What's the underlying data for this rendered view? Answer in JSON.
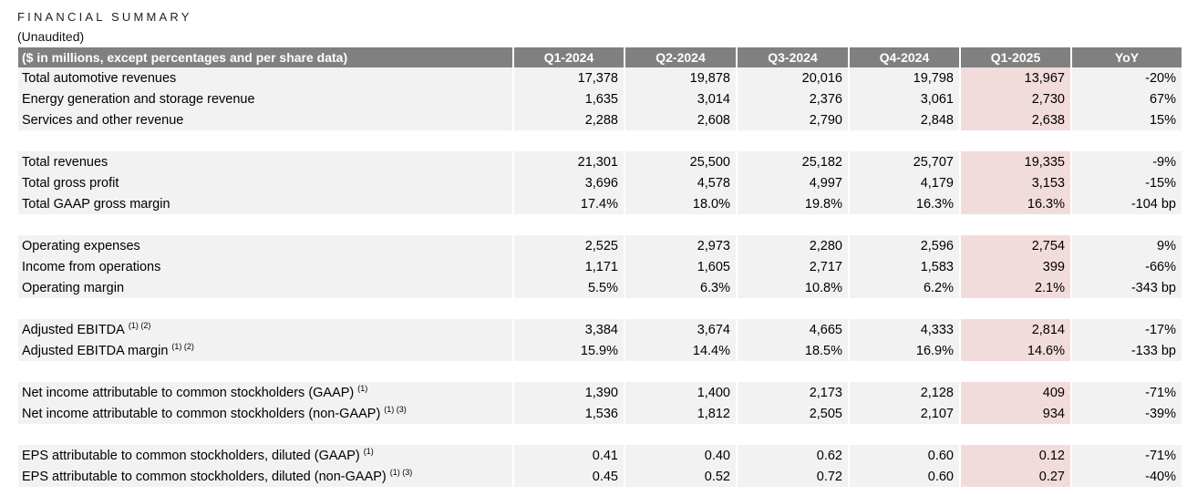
{
  "title": "FINANCIAL SUMMARY",
  "subtitle": "(Unaudited)",
  "header": [
    "($ in millions, except percentages and per share data)",
    "Q1-2024",
    "Q2-2024",
    "Q3-2024",
    "Q4-2024",
    "Q1-2025",
    "YoY"
  ],
  "groups": [
    [
      {
        "label": "Total automotive revenues",
        "sup": "",
        "values": [
          "17,378",
          "19,878",
          "20,016",
          "19,798",
          "13,967",
          "-20%"
        ]
      },
      {
        "label": "Energy generation and storage revenue",
        "sup": "",
        "values": [
          "1,635",
          "3,014",
          "2,376",
          "3,061",
          "2,730",
          "67%"
        ]
      },
      {
        "label": "Services and other revenue",
        "sup": "",
        "values": [
          "2,288",
          "2,608",
          "2,790",
          "2,848",
          "2,638",
          "15%"
        ]
      }
    ],
    [
      {
        "label": "Total revenues",
        "sup": "",
        "values": [
          "21,301",
          "25,500",
          "25,182",
          "25,707",
          "19,335",
          "-9%"
        ]
      },
      {
        "label": "Total gross profit",
        "sup": "",
        "values": [
          "3,696",
          "4,578",
          "4,997",
          "4,179",
          "3,153",
          "-15%"
        ]
      },
      {
        "label": "Total GAAP gross margin",
        "sup": "",
        "values": [
          "17.4%",
          "18.0%",
          "19.8%",
          "16.3%",
          "16.3%",
          "-104 bp"
        ]
      }
    ],
    [
      {
        "label": "Operating expenses",
        "sup": "",
        "values": [
          "2,525",
          "2,973",
          "2,280",
          "2,596",
          "2,754",
          "9%"
        ]
      },
      {
        "label": "Income from operations",
        "sup": "",
        "values": [
          "1,171",
          "1,605",
          "2,717",
          "1,583",
          "399",
          "-66%"
        ]
      },
      {
        "label": "Operating margin",
        "sup": "",
        "values": [
          "5.5%",
          "6.3%",
          "10.8%",
          "6.2%",
          "2.1%",
          "-343 bp"
        ]
      }
    ],
    [
      {
        "label": "Adjusted EBITDA",
        "sup": "(1) (2)",
        "values": [
          "3,384",
          "3,674",
          "4,665",
          "4,333",
          "2,814",
          "-17%"
        ]
      },
      {
        "label": "Adjusted EBITDA margin",
        "sup": "(1) (2)",
        "values": [
          "15.9%",
          "14.4%",
          "18.5%",
          "16.9%",
          "14.6%",
          "-133 bp"
        ]
      }
    ],
    [
      {
        "label": "Net income attributable to common stockholders (GAAP)",
        "sup": "(1)",
        "values": [
          "1,390",
          "1,400",
          "2,173",
          "2,128",
          "409",
          "-71%"
        ]
      },
      {
        "label": "Net income attributable to common stockholders (non-GAAP)",
        "sup": "(1) (3)",
        "values": [
          "1,536",
          "1,812",
          "2,505",
          "2,107",
          "934",
          "-39%"
        ]
      }
    ],
    [
      {
        "label": "EPS attributable to common stockholders, diluted (GAAP)",
        "sup": "(1)",
        "values": [
          "0.41",
          "0.40",
          "0.62",
          "0.60",
          "0.12",
          "-71%"
        ]
      },
      {
        "label": "EPS attributable to common stockholders, diluted (non-GAAP)",
        "sup": "(1) (3)",
        "values": [
          "0.45",
          "0.52",
          "0.72",
          "0.60",
          "0.27",
          "-40%"
        ]
      }
    ]
  ]
}
